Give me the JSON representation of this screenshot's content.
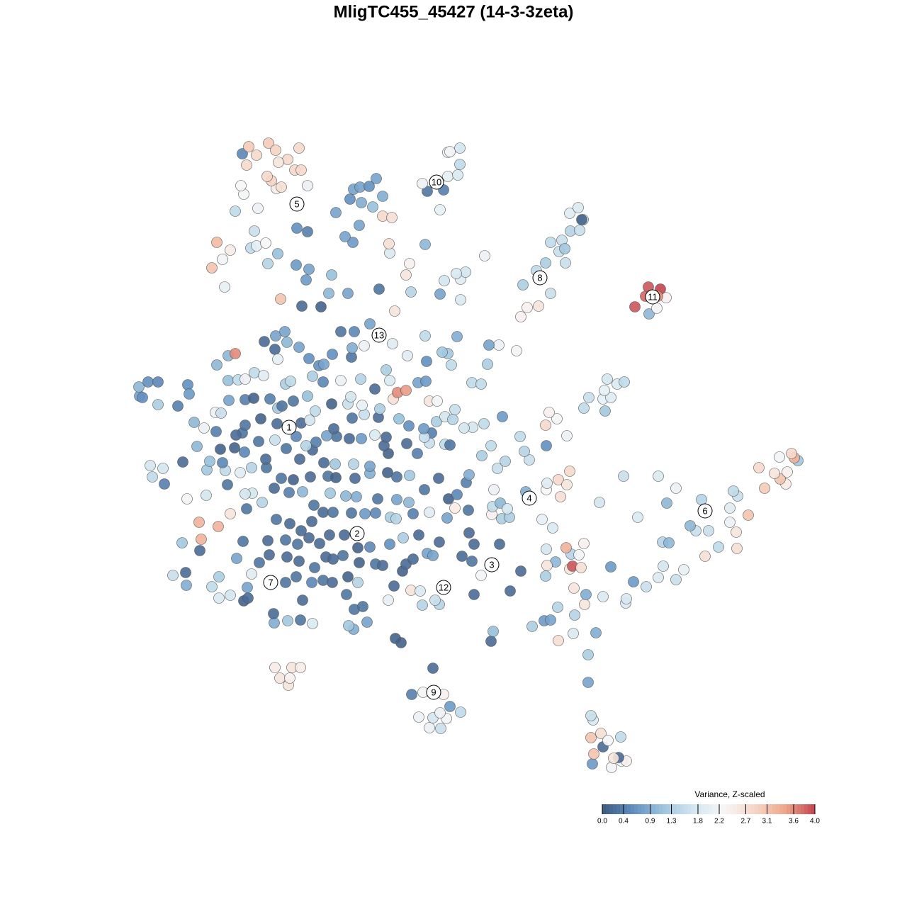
{
  "chart_data": {
    "type": "scatter",
    "title": "MligTC455_45427 (14-3-3zeta)",
    "xlim": [
      0,
      1280
    ],
    "ylim": [
      1280,
      0
    ],
    "x": [
      836,
      863,
      877,
      884,
      873,
      851,
      838,
      866,
      834,
      848,
      858,
      876,
      837,
      834,
      830,
      830,
      606,
      622,
      591,
      611,
      630,
      621,
      650,
      635,
      581,
      597,
      626,
      611,
      407,
      395,
      409,
      388,
      412,
      424,
      566,
      558,
      499,
      518,
      492,
      441,
      406,
      387,
      424,
      386,
      500,
      512,
      344,
      350,
      427,
      489,
      548,
      309,
      325,
      263,
      299,
      349,
      244,
      262,
      309,
      355,
      403,
      418,
      440,
      456,
      469,
      491,
      505,
      556,
      580,
      596,
      620,
      614,
      593,
      669,
      720,
      679,
      735,
      693,
      696,
      751,
      768,
      777,
      788,
      809,
      841,
      787,
      811,
      825,
      827,
      851,
      883,
      884,
      810,
      770,
      804,
      808,
      820,
      784,
      772,
      806,
      817,
      799,
      824,
      771,
      862,
      894,
      912,
      929,
      954,
      965,
      936,
      995,
      1014,
      935,
      944,
      982,
      1000,
      974,
      1040,
      1039,
      1056,
      1030,
      900,
      1030,
      990,
      1041,
      1035,
      941,
      954,
      929,
      880,
      846,
      1079,
      1109,
      1101,
      1093,
      1071,
      1111,
      1126,
      1121,
      1117,
      1100,
      694,
      708,
      719,
      695,
      706,
      716,
      765,
      780,
      742,
      791,
      771,
      772,
      788,
      800,
      804,
      697,
      702,
      713,
      747,
      740,
      680,
      693,
      734,
      771,
      800,
      770,
      786,
      775,
      824,
      831,
      854,
      851,
      862,
      853,
      857,
      871,
      881,
      709,
      683,
      667,
      655,
      666,
      679,
      688,
      704,
      690,
      729,
      366,
      380,
      405,
      422,
      444,
      460,
      470,
      484,
      507,
      530,
      540,
      568,
      573,
      583,
      603,
      611,
      652,
      666,
      669,
      705,
      662,
      620,
      591,
      569,
      550,
      522,
      505,
      486,
      465,
      451,
      436,
      420,
      403,
      378,
      343,
      334,
      282,
      257,
      284,
      308,
      281,
      325,
      348,
      390,
      409,
      425,
      440,
      456,
      470,
      496,
      515,
      530,
      551,
      559,
      583,
      606,
      631,
      642,
      661,
      633,
      645,
      599,
      577,
      560,
      533,
      503,
      488,
      466,
      443,
      427,
      408,
      387,
      370,
      356,
      346,
      321,
      264,
      291,
      232,
      215,
      230,
      212,
      258,
      292,
      318,
      339,
      355,
      376,
      397,
      414,
      438,
      463,
      474,
      501,
      522,
      547,
      560,
      578,
      619,
      658,
      662,
      278,
      296,
      314,
      311,
      331,
      345,
      375,
      404,
      423,
      441,
      457,
      473,
      499,
      522,
      548,
      542,
      574,
      589,
      606,
      628,
      635,
      609,
      599,
      577,
      545,
      529,
      510,
      493,
      475,
      461,
      446,
      432,
      418,
      388,
      365,
      342,
      333,
      305,
      288,
      274,
      346,
      368,
      391,
      425,
      437,
      445,
      471,
      497,
      514,
      534,
      563,
      598,
      616,
      628,
      642,
      639,
      223,
      251,
      197,
      201,
      196,
      209,
      223,
      265,
      267,
      304,
      312,
      323,
      346,
      358,
      381,
      392,
      398,
      414,
      434,
      468,
      491,
      495,
      511,
      536,
      555,
      561,
      573,
      606,
      617,
      590,
      601,
      322,
      336,
      346,
      359,
      372,
      403,
      410,
      441,
      456,
      481,
      509,
      529,
      550,
      545,
      306,
      322,
      332,
      373,
      388,
      392,
      405,
      422,
      436,
      450,
      457,
      469,
      496,
      497,
      514,
      554,
      575,
      602,
      632,
      637,
      624,
      645,
      600,
      481,
      500,
      522,
      389,
      402,
      557,
      426,
      453,
      396,
      464,
      491,
      535,
      580,
      621,
      650,
      317,
      432,
      468,
      436,
      418,
      378,
      392,
      627,
      650,
      657,
      644,
      573,
      578,
      299,
      314,
      325,
      306,
      354,
      362,
      375,
      359,
      550,
      549,
      600,
      684,
      498,
      487,
      434,
      419,
      507,
      474,
      332,
      364,
      540,
      553,
      526,
      494,
      510,
      540,
      499,
      508,
      521,
      531,
      621,
      603,
      626,
      596,
      632,
      646,
      649,
      632,
      649,
      635,
      344,
      340,
      390,
      397,
      383,
      377,
      434,
      416,
      425,
      348,
      406,
      393,
      342,
      362,
      351,
      379,
      389,
      422,
      735,
      744,
      760,
      777,
      738,
      770,
      798,
      789,
      777,
      793,
      797,
      805,
      818,
      823,
      821,
      804,
      816,
      757,
      916,
      927,
      896,
      911,
      940,
      915,
      932,
      928
    ],
    "y": [
      202,
      197,
      206,
      206,
      211,
      226,
      216,
      210,
      239,
      245,
      235,
      240,
      264,
      270,
      317,
      356,
      253,
      252,
      268,
      267,
      266,
      274,
      275,
      283,
      300,
      303,
      300,
      337,
      313,
      323,
      323,
      338,
      338,
      338,
      373,
      379,
      392,
      402,
      397,
      400,
      404,
      401,
      405,
      414,
      420,
      424,
      432,
      436,
      433,
      441,
      433,
      436,
      440,
      454,
      452,
      451,
      468,
      472,
      466,
      470,
      458,
      466,
      458,
      461,
      458,
      466,
      458,
      453,
      447,
      426,
      427,
      433,
      446,
      441,
      446,
      468,
      474,
      375,
      389,
      396,
      404,
      405,
      376,
      386,
      387,
      423,
      412,
      427,
      441,
      438,
      429,
      435,
      450,
      467,
      477,
      481,
      479,
      487,
      482,
      498,
      497,
      507,
      513,
      505,
      480,
      459,
      452,
      465,
      462,
      476,
      481,
      495,
      508,
      515,
      514,
      531,
      531,
      538,
      506,
      529,
      553,
      543,
      550,
      563,
      575,
      580,
      587,
      570,
      591,
      608,
      608,
      571,
      591,
      597,
      604,
      612,
      620,
      614,
      630,
      634,
      640,
      635,
      554,
      548,
      550,
      565,
      570,
      562,
      547,
      535,
      586,
      579,
      589,
      598,
      603,
      596,
      615,
      589,
      619,
      629,
      631,
      643,
      637,
      651,
      664,
      651,
      665,
      680,
      689,
      698,
      704,
      719,
      700,
      717,
      719,
      729,
      745,
      738,
      741,
      692,
      682,
      677,
      676,
      740,
      738,
      766,
      793,
      793,
      785,
      486,
      497,
      494,
      488,
      479,
      494,
      491,
      496,
      486,
      484,
      482,
      474,
      484,
      491,
      499,
      496,
      495,
      488,
      512,
      512,
      528,
      515,
      525,
      521,
      512,
      508,
      507,
      525,
      525,
      513,
      521,
      512,
      518,
      517,
      516,
      492,
      503,
      514,
      519,
      537,
      543,
      555,
      562,
      547,
      541,
      531,
      544,
      557,
      557,
      556,
      555,
      556,
      550,
      548,
      555,
      557,
      549,
      563,
      560,
      576,
      582,
      589,
      571,
      575,
      576,
      579,
      580,
      584,
      567,
      586,
      585,
      591,
      571,
      584,
      583,
      596,
      576,
      581,
      597,
      607,
      619,
      623,
      628,
      617,
      616,
      613,
      620,
      620,
      605,
      603,
      607,
      608,
      606,
      605,
      612,
      613,
      607,
      609,
      605,
      599,
      610,
      650,
      629,
      627,
      646,
      648,
      642,
      632,
      647,
      632,
      645,
      627,
      625,
      625,
      622,
      640,
      651,
      654,
      640,
      655,
      653,
      652,
      669,
      663,
      679,
      663,
      666,
      661,
      661,
      664,
      665,
      656,
      651,
      664,
      659,
      657,
      669,
      666,
      671,
      676,
      684,
      680,
      689,
      682,
      683,
      687,
      700,
      675,
      690,
      695,
      691,
      689,
      675,
      685,
      692,
      702,
      688,
      709,
      707,
      721,
      719,
      734,
      741,
      741,
      737,
      724,
      698,
      697,
      715,
      716,
      718,
      717,
      704,
      707,
      714,
      721,
      710,
      710,
      720,
      708,
      703,
      717,
      726,
      729,
      714,
      714,
      740,
      742,
      743,
      744,
      745,
      754,
      750,
      738,
      742,
      749,
      741,
      743,
      745,
      731,
      743,
      758,
      765,
      778,
      781,
      798,
      787,
      773,
      797,
      790,
      774,
      764,
      766,
      780,
      776,
      789,
      792,
      795,
      778,
      770,
      781,
      765,
      783,
      805,
      806,
      812,
      812,
      823,
      806,
      812,
      841,
      848,
      847,
      858,
      866,
      866,
      872,
      868,
      865,
      857,
      875,
      885,
      892,
      900,
      906,
      908,
      922,
      884,
      886,
      896,
      894,
      892,
      908,
      902,
      914,
      927,
      938,
      930,
      933,
      937,
      954,
      923,
      936,
      935,
      919,
      938,
      946,
      953,
      958,
      962,
      980,
      982,
      986,
      975,
      973,
      988,
      999,
      994,
      1003,
      1013,
      1016,
      1017,
      1028,
      984,
      1010,
      1012,
      1021,
      1031,
      1033,
      1048,
      1065,
      1071,
      1066,
      1006,
      1018,
      1014,
      1016,
      1025,
      1031,
      1018,
      1040,
      1040,
      1047,
      1055,
      1051,
      1063,
      1061,
      1073,
      1078,
      1068,
      1071,
      833,
      846,
      848,
      866,
      878,
      909,
      909,
      925,
      938,
      941,
      929,
      954,
      955,
      970,
      970,
      979,
      987,
      898,
      837,
      845,
      847,
      862,
      860,
      875,
      872,
      862
    ],
    "values": [
      0.7,
      2.2,
      2.2,
      2.4,
      0.2,
      0.2,
      3.1,
      2.6,
      3.1,
      2.7,
      2.2,
      1.5,
      1.8,
      1.6,
      0.8,
      1.3,
      2.1,
      1.6,
      2.1,
      1.7,
      2.2,
      2.1,
      1.5,
      0.7,
      0.4,
      2.2,
      2.4,
      0.2,
      2.6,
      2.6,
      2.4,
      2.5,
      2.6,
      2.5,
      0.1,
      0.1,
      0.9,
      0.8,
      1.2,
      1.8,
      1.2,
      0.9,
      0.3,
      0.2,
      0.3,
      0.3,
      0.1,
      0.2,
      0.2,
      0.3,
      2.0,
      1.8,
      1.7,
      0.9,
      1.5,
      0.8,
      1.6,
      0.2,
      1.3,
      1.9,
      0.3,
      0.3,
      0.5,
      0.3,
      0.2,
      0.1,
      1.4,
      0.2,
      2.6,
      1.4,
      1.4,
      1.6,
      1.8,
      0.2,
      0.2,
      2.2,
      0.2,
      0.2,
      1.1,
      1.3,
      0.7,
      0.8,
      2.7,
      1.8,
      0.9,
      1.4,
      1.4,
      2.6,
      0.9,
      1.8,
      1.8,
      1.8,
      2.6,
      1.3,
      2.6,
      3.9,
      2.7,
      1.0,
      2.6,
      1.4,
      2.2,
      3.3,
      2.4,
      1.7,
      0.7,
      0.7,
      1.6,
      1.8,
      1.6,
      2.0,
      1.7,
      2.7,
      1.5,
      1.4,
      1.0,
      1.6,
      1.6,
      1.0,
      2.7,
      2.6,
      3.1,
      2.1,
      1.8,
      1.9,
      1.4,
      1.6,
      1.5,
      1.0,
      2.1,
      1.8,
      1.6,
      1.7,
      3.0,
      2.5,
      3.1,
      2.6,
      2.8,
      2.4,
      1.2,
      3.3,
      2.8,
      2.2,
      2.4,
      1.3,
      1.3,
      1.5,
      1.0,
      1.7,
      2.0,
      1.8,
      0.9,
      2.7,
      2.3,
      1.9,
      2.8,
      2.6,
      2.8,
      2.1,
      1.6,
      1.4,
      1.6,
      1.4,
      1.3,
      1.5,
      1.5,
      0.6,
      2.1,
      2.8,
      2.2,
      2.4,
      1.5,
      1.6,
      1.2,
      2.0,
      1.9,
      2.0,
      1.7,
      1.8,
      1.5,
      0.7,
      1.5,
      1.7,
      1.7,
      1.5,
      1.5,
      1.3,
      2.1,
      0.8,
      2.2,
      0.3,
      0.2,
      0.2,
      0.2,
      0.3,
      0.2,
      0.2,
      0.3,
      0.1,
      0.3,
      0.2,
      0.1,
      0.2,
      0.2,
      0.8,
      0.8,
      0.2,
      0.3,
      0.2,
      0.2,
      0.2,
      0.2,
      0.2,
      1.3,
      0.6,
      0.5,
      0.1,
      0.2,
      0.2,
      0.2,
      0.2,
      0.3,
      0.3,
      0.2,
      0.3,
      0.8,
      0.2,
      1.2,
      3.3,
      3.3,
      3.3,
      2.6,
      0.3,
      0.3,
      0.2,
      0.2,
      0.2,
      0.2,
      0.3,
      0.3,
      0.7,
      0.5,
      1.3,
      1.4,
      0.4,
      1.9,
      0.8,
      2.5,
      0.3,
      0.1,
      0.5,
      0.3,
      1.0,
      0.8,
      0.3,
      0.9,
      1.0,
      1.2,
      0.3,
      1.0,
      0.4,
      0.2,
      1.4,
      1.7,
      1.7,
      0.3,
      2.2,
      1.7,
      0.4,
      1.5,
      1.7,
      1.7,
      0.2,
      1.2,
      1.5,
      1.9,
      1.4,
      0.3,
      0.3,
      0.1,
      0.2,
      0.3,
      0.1,
      0.2,
      0.9,
      0.1,
      0.3,
      1.2,
      0.2,
      0.4,
      0.9,
      1.0,
      1.1,
      0.5,
      0.1,
      0.1,
      0.5,
      0.2,
      0.3,
      0.2,
      0.2,
      0.2,
      1.2,
      1.4,
      0.8,
      0.1,
      0.2,
      0.2,
      0.4,
      1.6,
      1.5,
      0.3,
      0.4,
      1.6,
      0.6,
      0.2,
      1.8,
      0.7,
      0.2,
      0.3,
      0.8,
      0.4,
      1.4,
      0.5,
      1.6,
      0.3,
      0.3,
      0.2,
      0.4,
      2.1,
      1.0,
      0.3,
      0.1,
      0.2,
      0.2,
      1.7,
      1.5,
      0.2,
      0.3,
      1.6,
      0.2,
      1.1,
      0.7,
      1.3,
      1.7,
      1.6,
      1.4,
      1.3,
      0.4,
      0.8,
      0.6,
      1.0,
      0.6,
      0.5,
      0.6,
      0.7,
      2.1,
      1.6,
      0.8,
      0.4,
      0.1,
      0.4,
      1.2,
      0.3,
      0.3,
      1.1,
      0.1,
      1.6,
      1.7,
      2.0,
      1.3,
      2.7,
      3.6,
      3.5,
      2.6,
      2.2,
      0.8,
      0.7,
      1.1,
      1.5,
      2.1,
      1.5,
      1.9,
      1.3,
      1.5,
      1.3,
      0.5,
      2.1,
      1.4,
      0.2,
      1.8,
      1.3,
      1.0,
      1.0,
      3.6,
      0.2,
      0.2,
      2.0,
      1.0,
      0.8,
      0.6,
      0.6,
      0.8,
      0.6,
      0.3,
      0.9,
      2.1,
      1.9,
      1.9,
      0.6,
      1.2,
      1.5,
      1.2,
      0.9,
      1.5,
      0.3,
      0.5,
      0.8,
      0.8,
      0.8,
      2.6,
      0.2,
      0.1,
      3.1,
      1.0,
      0.8,
      0.3,
      1.4,
      0.8,
      1.8,
      2.0,
      0.7,
      1.1,
      0.8,
      0.7,
      1.4,
      1.1,
      1.7,
      1.9,
      1.7,
      1.8,
      2.6,
      2.4,
      3.1,
      2.2,
      2.5,
      3.2,
      1.5,
      2.0,
      2.3,
      1.6,
      1.8,
      2.7,
      1.0,
      2.1,
      0.7,
      0.8,
      0.4,
      0.6,
      0.8,
      0.8,
      1.5,
      2.1,
      2.8,
      2.7,
      1.1,
      0.6,
      0.9,
      0.9,
      0.8,
      0.8,
      0.6,
      0.8,
      2.0,
      0.3,
      0.4,
      2.1,
      2.0,
      1.8,
      1.5,
      2.2,
      1.7,
      2.2,
      2.2,
      2.3,
      2.5,
      2.7,
      2.9,
      2.8,
      2.1,
      2.8,
      2.8,
      2.8,
      2.8,
      2.6,
      0.5,
      2.8,
      3.0,
      3.0,
      2.9,
      2.8,
      2.4,
      2.4,
      2.6,
      1.6,
      1.3,
      1.3,
      1.6,
      1.6,
      1.5,
      1.6,
      1.2,
      1.4,
      1.6,
      1.7,
      0.1,
      1.9,
      1.8,
      1.5,
      1.0,
      2.2,
      3.9,
      3.8,
      2.4,
      3.9,
      4.0,
      3.6
    ],
    "clim": [
      0,
      4
    ],
    "colors": [
      "#3e5a80",
      "#5f8dbf",
      "#9cc5dd",
      "#d4e6f0",
      "#f7f7f7",
      "#f6d6c6",
      "#eea98d",
      "#c4444f"
    ],
    "cluster_labels": [
      {
        "label": "1",
        "x": 408,
        "y": 677
      },
      {
        "label": "2",
        "x": 504,
        "y": 527
      },
      {
        "label": "3",
        "x": 694,
        "y": 483
      },
      {
        "label": "4",
        "x": 747,
        "y": 577
      },
      {
        "label": "5",
        "x": 419,
        "y": 992
      },
      {
        "label": "6",
        "x": 995,
        "y": 559
      },
      {
        "label": "7",
        "x": 382,
        "y": 458
      },
      {
        "label": "8",
        "x": 762,
        "y": 888
      },
      {
        "label": "9",
        "x": 612,
        "y": 303
      },
      {
        "label": "10",
        "x": 616,
        "y": 1023
      },
      {
        "label": "11",
        "x": 921,
        "y": 861
      },
      {
        "label": "12",
        "x": 626,
        "y": 451
      },
      {
        "label": "13",
        "x": 535,
        "y": 807
      }
    ],
    "colorbar_title": "Variance, Z-scaled",
    "colorbar_ticks": [
      {
        "value": 0,
        "label": "0.0"
      },
      0.4,
      0.9,
      1.3,
      1.8,
      2.2,
      2.7,
      3.1,
      3.6,
      {
        "value": 4,
        "label": "4.0"
      }
    ]
  }
}
